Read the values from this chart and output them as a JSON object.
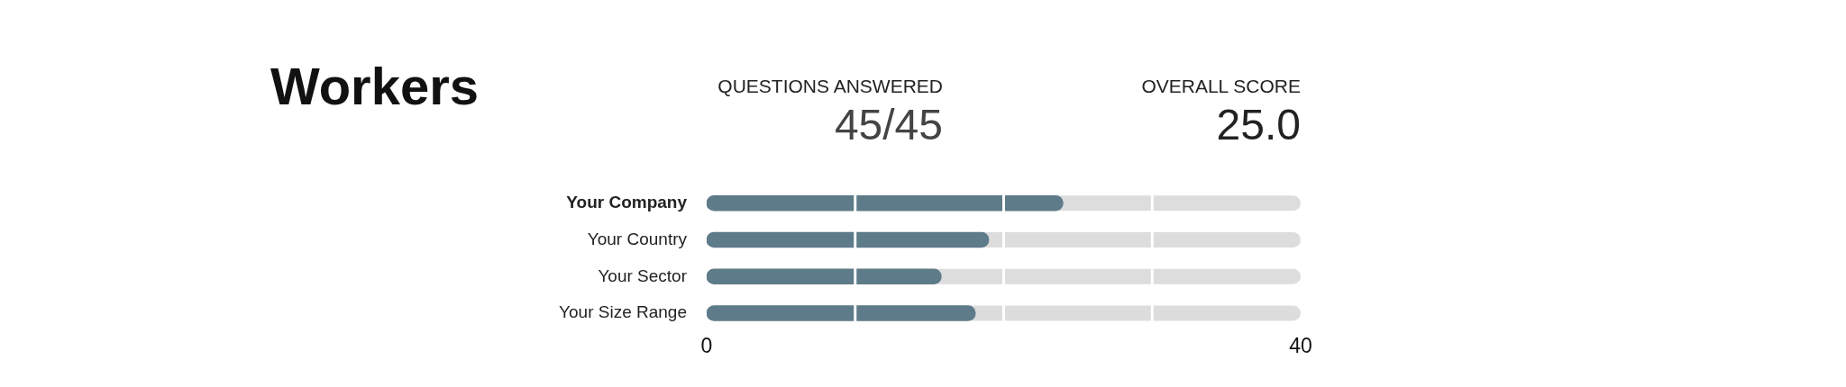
{
  "chart_data": {
    "type": "bar",
    "orientation": "horizontal",
    "title": "Workers",
    "annotations": [
      "QUESTIONS ANSWERED",
      "45/45",
      "OVERALL SCORE",
      "25.0"
    ],
    "categories": [
      "Your Company",
      "Your Country",
      "Your Sector",
      "Your Size Range"
    ],
    "values": [
      24,
      19,
      15.8,
      18.1
    ],
    "color": "#5e7b89",
    "xlim": [
      0,
      40
    ],
    "xticks": [
      0,
      {
        "value": 10,
        "label": null
      },
      {
        "value": 20,
        "label": null
      },
      {
        "value": 30,
        "label": null
      },
      40
    ],
    "grid": "x",
    "legend": false
  }
}
